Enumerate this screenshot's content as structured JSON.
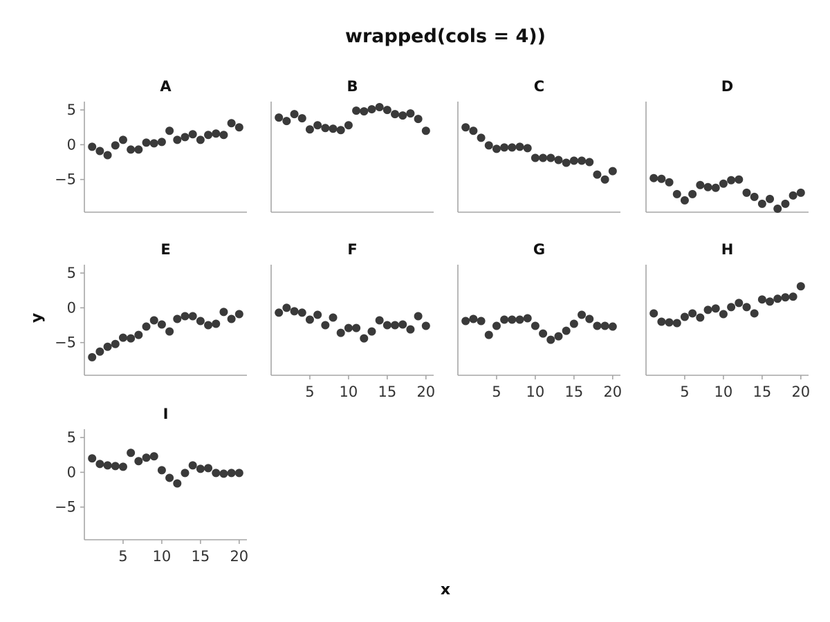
{
  "chart_data": {
    "type": "scatter",
    "title": "wrapped(cols = 4))",
    "xlabel": "x",
    "ylabel": "y",
    "layout": "wrap, 4 columns",
    "x": [
      1,
      2,
      3,
      4,
      5,
      6,
      7,
      8,
      9,
      10,
      11,
      12,
      13,
      14,
      15,
      16,
      17,
      18,
      19,
      20
    ],
    "xlim": [
      0,
      21
    ],
    "ylim": [
      -9.7,
      6.2
    ],
    "xticks": [
      5,
      10,
      15,
      20
    ],
    "xtick_labels": [
      "5",
      "10",
      "15",
      "20"
    ],
    "yticks": [
      5,
      0,
      -5
    ],
    "ytick_labels": [
      "5",
      "0",
      "−5"
    ],
    "grid": false,
    "point_color": "#3a3a3a",
    "axis_color": "#a6a6a6",
    "panels": [
      {
        "name": "A",
        "values": [
          -0.3,
          -0.9,
          -1.5,
          -0.1,
          0.7,
          -0.7,
          -0.7,
          0.3,
          0.2,
          0.4,
          2.0,
          0.7,
          1.1,
          1.5,
          0.7,
          1.4,
          1.6,
          1.4,
          3.1,
          2.5
        ]
      },
      {
        "name": "B",
        "values": [
          3.9,
          3.4,
          4.4,
          3.8,
          2.2,
          2.8,
          2.4,
          2.3,
          2.1,
          2.8,
          4.9,
          4.8,
          5.1,
          5.4,
          5.0,
          4.4,
          4.2,
          4.5,
          3.7,
          2.0
        ]
      },
      {
        "name": "C",
        "values": [
          2.5,
          2.0,
          1.0,
          -0.1,
          -0.6,
          -0.4,
          -0.4,
          -0.3,
          -0.5,
          -1.9,
          -1.9,
          -1.9,
          -2.2,
          -2.6,
          -2.3,
          -2.3,
          -2.5,
          -4.3,
          -5.0,
          -3.8
        ]
      },
      {
        "name": "D",
        "values": [
          -4.8,
          -4.9,
          -5.4,
          -7.1,
          -8.0,
          -7.1,
          -5.8,
          -6.1,
          -6.2,
          -5.6,
          -5.1,
          -5.0,
          -6.9,
          -7.5,
          -8.5,
          -7.8,
          -9.2,
          -8.5,
          -7.3,
          -6.9
        ]
      },
      {
        "name": "E",
        "values": [
          -7.1,
          -6.3,
          -5.6,
          -5.2,
          -4.3,
          -4.4,
          -3.9,
          -2.7,
          -1.8,
          -2.4,
          -3.4,
          -1.6,
          -1.2,
          -1.2,
          -1.9,
          -2.5,
          -2.3,
          -0.6,
          -1.6,
          -0.9
        ]
      },
      {
        "name": "F",
        "values": [
          -0.7,
          0.0,
          -0.5,
          -0.7,
          -1.7,
          -1.0,
          -2.5,
          -1.4,
          -3.6,
          -2.9,
          -2.9,
          -4.4,
          -3.4,
          -1.8,
          -2.5,
          -2.5,
          -2.4,
          -3.1,
          -1.2,
          -2.6
        ]
      },
      {
        "name": "G",
        "values": [
          -1.9,
          -1.6,
          -1.9,
          -3.9,
          -2.6,
          -1.7,
          -1.7,
          -1.7,
          -1.5,
          -2.6,
          -3.7,
          -4.6,
          -4.1,
          -3.3,
          -2.3,
          -1.0,
          -1.6,
          -2.6,
          -2.6,
          -2.7
        ]
      },
      {
        "name": "H",
        "values": [
          -0.8,
          -2.0,
          -2.1,
          -2.2,
          -1.3,
          -0.8,
          -1.4,
          -0.3,
          -0.1,
          -0.9,
          0.1,
          0.7,
          0.1,
          -0.8,
          1.2,
          0.9,
          1.3,
          1.5,
          1.6,
          3.1
        ]
      },
      {
        "name": "I",
        "values": [
          2.0,
          1.2,
          1.0,
          0.9,
          0.8,
          2.8,
          1.6,
          2.1,
          2.3,
          0.3,
          -0.8,
          -1.6,
          -0.1,
          1.0,
          0.5,
          0.6,
          -0.1,
          -0.2,
          -0.1,
          -0.1
        ]
      }
    ]
  }
}
